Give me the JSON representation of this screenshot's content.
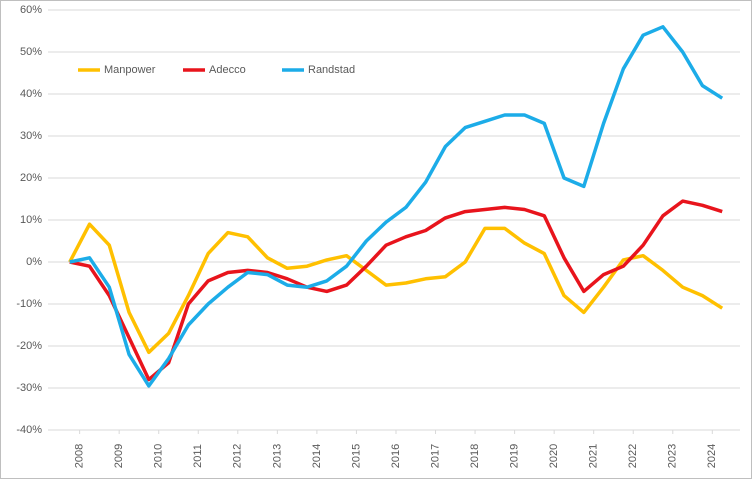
{
  "chart_data": {
    "type": "line",
    "x": [
      2007.75,
      2008.25,
      2008.75,
      2009.25,
      2009.75,
      2010.25,
      2010.75,
      2011.25,
      2011.75,
      2012.25,
      2012.75,
      2013.25,
      2013.75,
      2014.25,
      2014.75,
      2015.25,
      2015.75,
      2016.25,
      2016.75,
      2017.25,
      2017.75,
      2018.25,
      2018.75,
      2019.25,
      2019.75,
      2020.25,
      2020.75,
      2021.25,
      2021.75,
      2022.25,
      2022.75,
      2023.25,
      2023.75,
      2024.25
    ],
    "series": [
      {
        "name": "Manpower",
        "color": "#ffc000",
        "values": [
          0,
          9,
          4,
          -12,
          -21.5,
          -17,
          -8,
          2,
          7,
          6,
          1,
          -1.5,
          -1,
          0.5,
          1.5,
          -2,
          -5.5,
          -5,
          -4,
          -3.5,
          0,
          8,
          8,
          4.5,
          2,
          -8,
          -12,
          -6,
          0.5,
          1.5,
          -2,
          -6,
          -8,
          -11
        ]
      },
      {
        "name": "Adecco",
        "color": "#e8141c",
        "values": [
          0,
          -1,
          -8,
          -18,
          -28,
          -24,
          -10,
          -4.5,
          -2.5,
          -2,
          -2.5,
          -4,
          -6,
          -7,
          -5.5,
          -1,
          4,
          6,
          7.5,
          10.5,
          12,
          12.5,
          13,
          12.5,
          11,
          1,
          -7,
          -3,
          -1,
          4,
          11,
          14.5,
          13.5,
          12
        ]
      },
      {
        "name": "Randstad",
        "color": "#1cace8",
        "values": [
          0,
          1,
          -6,
          -22,
          -29.5,
          -23,
          -15,
          -10,
          -6,
          -2.5,
          -3,
          -5.5,
          -6,
          -4.5,
          -1,
          5,
          9.5,
          13,
          19,
          27.5,
          32,
          33.5,
          35,
          35,
          33,
          20,
          18,
          33,
          46,
          54,
          56,
          50,
          42,
          39
        ]
      }
    ],
    "xlim": [
      2007.2,
      2024.7
    ],
    "xticks": [
      2008,
      2009,
      2010,
      2011,
      2012,
      2013,
      2014,
      2015,
      2016,
      2017,
      2018,
      2019,
      2020,
      2021,
      2022,
      2023,
      2024
    ],
    "ylim": [
      -40,
      60
    ],
    "yticks": [
      {
        "value": -40,
        "label": "-40%"
      },
      {
        "value": -30,
        "label": "-30%"
      },
      {
        "value": -20,
        "label": "-20%"
      },
      {
        "value": -10,
        "label": "-10%"
      },
      {
        "value": 0,
        "label": "0%"
      },
      {
        "value": 10,
        "label": "10%"
      },
      {
        "value": 20,
        "label": "20%"
      },
      {
        "value": 30,
        "label": "30%"
      },
      {
        "value": 40,
        "label": "40%"
      },
      {
        "value": 50,
        "label": "50%"
      },
      {
        "value": 60,
        "label": "60%"
      }
    ],
    "grid": true,
    "legend": "top-left"
  }
}
